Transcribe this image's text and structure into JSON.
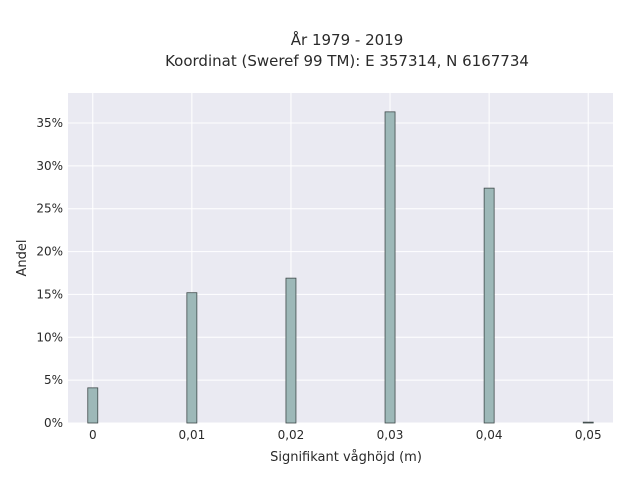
{
  "chart_data": {
    "type": "bar",
    "title_line1": "År 1979 - 2019",
    "title_line2": "Koordinat (Sweref 99 TM): E 357314, N 6167734",
    "xlabel": "Signifikant våghöjd (m)",
    "ylabel": "Andel",
    "x_tick_labels": [
      "0",
      "0,01",
      "0,02",
      "0,03",
      "0,04",
      "0,05"
    ],
    "y_tick_labels": [
      "0%",
      "5%",
      "10%",
      "15%",
      "20%",
      "25%",
      "30%",
      "35%"
    ],
    "xlim": [
      -0.0025,
      0.0525
    ],
    "ylim": [
      0,
      0.385
    ],
    "bars": [
      {
        "x": 0.0,
        "label": "0",
        "value": 0.041
      },
      {
        "x": 0.01,
        "label": "0,01",
        "value": 0.152
      },
      {
        "x": 0.02,
        "label": "0,02",
        "value": 0.169
      },
      {
        "x": 0.03,
        "label": "0,03",
        "value": 0.363
      },
      {
        "x": 0.04,
        "label": "0,04",
        "value": 0.274
      },
      {
        "x": 0.05,
        "label": "0,05",
        "value": 0.001
      }
    ],
    "bar_color": "#9db8b8",
    "bar_edge_color": "#3f4a4a",
    "background_color": "#eaeaf2",
    "grid": true
  }
}
